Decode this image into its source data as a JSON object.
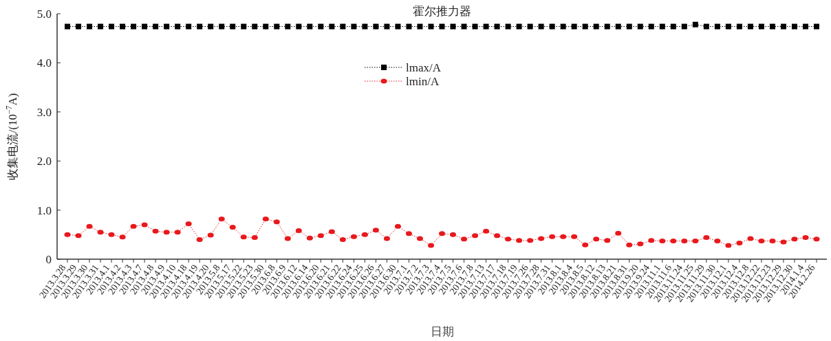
{
  "chart_data": {
    "type": "line",
    "title": "霍尔推力器",
    "xlabel": "日期",
    "ylabel": "收集电流/(10$^{−7}$A)",
    "categories": [
      "2013.3.28",
      "2013.3.29",
      "2013.3.30",
      "2013.3.31",
      "2013.4.1",
      "2013.4.2",
      "2013.4.3",
      "2013.4.7",
      "2013.4.8",
      "2013.4.9",
      "2013.4.10",
      "2013.4.18",
      "2013.4.19",
      "2013.4.20",
      "2013.5.8",
      "2013.5.17",
      "2013.5.22",
      "2013.5.23",
      "2013.5.30",
      "2013.6.8",
      "2013.6.9",
      "2013.6.12",
      "2013.6.14",
      "2013.6.20",
      "2013.6.21",
      "2013.6.22",
      "2013.6.24",
      "2013.6.25",
      "2013.6.26",
      "2013.6.27",
      "2013.6.30",
      "2013.7.1",
      "2013.7.2",
      "2013.7.3",
      "2013.7.4",
      "2013.7.5",
      "2013.7.6",
      "2013.7.8",
      "2013.7.13",
      "2013.7.17",
      "2013.7.18",
      "2013.7.19",
      "2013.7.26",
      "2013.7.28",
      "2013.7.31",
      "2013.8.1",
      "2013.8.4",
      "2013.8.5",
      "2013.8.12",
      "2013.8.13",
      "2013.8.21",
      "2013.8.31",
      "2013.9.20",
      "2013.9.24",
      "2013.11.1",
      "2013.11.6",
      "2013.11.24",
      "2013.11.25",
      "2013.11.29",
      "2013.11.30",
      "2013.12.1",
      "2013.12.4",
      "2013.12.8",
      "2013.12.22",
      "2013.12.23",
      "2013.12.29",
      "2013.12.30",
      "2014.1.4",
      "2014.2.26"
    ],
    "series": [
      {
        "name": "lmax/A",
        "color": "#000000",
        "marker": "square",
        "values": [
          4.74,
          4.74,
          4.74,
          4.74,
          4.74,
          4.74,
          4.74,
          4.74,
          4.74,
          4.74,
          4.74,
          4.74,
          4.74,
          4.74,
          4.74,
          4.74,
          4.74,
          4.74,
          4.74,
          4.74,
          4.74,
          4.74,
          4.74,
          4.74,
          4.74,
          4.74,
          4.74,
          4.74,
          4.74,
          4.74,
          4.74,
          4.74,
          4.74,
          4.74,
          4.74,
          4.74,
          4.74,
          4.74,
          4.74,
          4.74,
          4.74,
          4.74,
          4.74,
          4.74,
          4.74,
          4.74,
          4.74,
          4.74,
          4.74,
          4.74,
          4.74,
          4.74,
          4.74,
          4.74,
          4.74,
          4.74,
          4.74,
          4.78,
          4.74,
          4.74,
          4.74,
          4.74,
          4.74,
          4.74,
          4.74,
          4.74,
          4.74,
          4.74,
          4.74
        ]
      },
      {
        "name": "lmin/A",
        "color": "#e8191d",
        "marker": "circle",
        "values": [
          0.5,
          0.48,
          0.67,
          0.55,
          0.5,
          0.45,
          0.67,
          0.7,
          0.57,
          0.55,
          0.55,
          0.72,
          0.4,
          0.49,
          0.82,
          0.65,
          0.45,
          0.44,
          0.82,
          0.76,
          0.42,
          0.58,
          0.43,
          0.48,
          0.56,
          0.4,
          0.46,
          0.5,
          0.59,
          0.42,
          0.67,
          0.52,
          0.42,
          0.28,
          0.52,
          0.5,
          0.41,
          0.48,
          0.57,
          0.48,
          0.41,
          0.38,
          0.38,
          0.42,
          0.46,
          0.46,
          0.46,
          0.29,
          0.41,
          0.38,
          0.53,
          0.29,
          0.31,
          0.38,
          0.37,
          0.37,
          0.37,
          0.37,
          0.44,
          0.37,
          0.28,
          0.33,
          0.42,
          0.37,
          0.37,
          0.35,
          0.41,
          0.44,
          0.41
        ]
      }
    ],
    "ylim": [
      0,
      5
    ],
    "yticks": [
      0,
      {
        "value": 1,
        "label": "1.0"
      },
      {
        "value": 2,
        "label": "2.0"
      },
      {
        "value": 3,
        "label": "3.0"
      },
      {
        "value": 4,
        "label": "4.0"
      },
      {
        "value": 5,
        "label": "5.0"
      }
    ],
    "legend": "top",
    "line_style": "dotted",
    "grid": false
  }
}
